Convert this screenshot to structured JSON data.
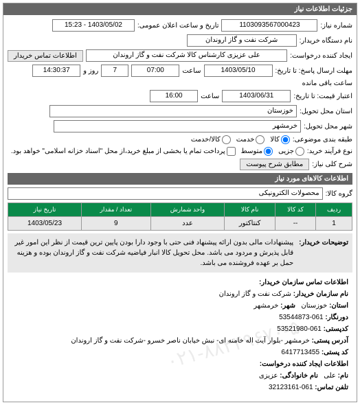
{
  "header": {
    "title": "جزئیات اطلاعات نیاز"
  },
  "form": {
    "request_number_label": "شماره نیاز:",
    "request_number": "1103093567000423",
    "announce_date_label": "تاریخ و ساعت اعلان عمومی:",
    "announce_date": "1403/05/02 - 15:23",
    "device_name_label": "نام دستگاه خریدار:",
    "device_name": "شرکت نفت و گاز اروندان",
    "creator_label": "ایجاد کننده درخواست:",
    "creator": "علی عزیزی کارشناس کالا شرکت نفت و گاز اروندان",
    "buyer_contact_btn": "اطلاعات تماس خریدار",
    "deadline_label": "مهلت ارسال پاسخ: تا تاریخ:",
    "deadline_date": "1403/05/10",
    "deadline_hour_label": "ساعت",
    "deadline_hour": "07:00",
    "remain_days": "7",
    "remain_days_label": "روز و",
    "remain_time": "14:30:37",
    "remain_time_label": "ساعت باقی مانده",
    "validity_label": "اعتبار قیمت: تا تاریخ:",
    "validity_date": "1403/06/31",
    "validity_hour_label": "ساعت",
    "validity_hour": "16:00",
    "province_label": "استان محل تحویل:",
    "province": "خوزستان",
    "city_label": "شهر محل تحویل:",
    "city": "خرمشهر",
    "class_label": "طبقه بندی موضوعی:",
    "class_goods": "کالا",
    "class_service": "خدمت",
    "class_both": "کالا/خدمت",
    "type_label": "نوع فرآیند خرید:",
    "type_small": "جزیی",
    "type_medium": "متوسط",
    "type_note": "پرداخت تمام یا بخشی از مبلغ خرید،از محل \"اسناد خزانه اسلامی\" خواهد بود.",
    "desc_label": "شرح کلی نیاز:",
    "desc_btn": "مطابق شرح پیوست",
    "items_title": "اطلاعات کالاهای مورد نیاز",
    "group_label": "گروه کالا:",
    "group": "محصولات الکترونیکی"
  },
  "table": {
    "cols": [
      "ردیف",
      "کد کالا",
      "نام کالا",
      "واحد شمارش",
      "تعداد / مقدار",
      "تاریخ نیاز"
    ],
    "rows": [
      [
        "1",
        "--",
        "کنتاکتور",
        "عدد",
        "9",
        "1403/05/23"
      ]
    ]
  },
  "notes": {
    "label": "توضیحات خریدار:",
    "text": "پیشنهادات مالی بدون ارائه پیشنهاد فنی حتی با وجود دارا بودن پایین ترین قیمت از نظر این امور غیر قابل پذیرش و مردود می باشد. محل تحویل کالا انبار فیاضیه شرکت نفت و گاز اروندان بوده و هزینه حمل بر عهده فروشنده می باشد."
  },
  "contact": {
    "section_title": "اطلاعات تماس سازمان خریدار:",
    "org_label": "نام سازمان خریدار:",
    "org": "شرکت نفت و گاز اروندان",
    "province_label": "استان:",
    "province": "خوزستان",
    "city_label": "شهر:",
    "city": "خرمشهر",
    "fax_label": "دورنگار:",
    "fax": "061-53544873",
    "postal_label": "کدپستی:",
    "postal": "061-53521980",
    "address_label": "آدرس پستی:",
    "address": "خرمشهر -بلوار آیت اله خامنه ای- نبش خیابان ناصر خسرو -شرکت نفت و گاز اروندان",
    "zip_label": "کد پستی:",
    "zip": "6417713455",
    "creator_section": "اطلاعات ایجاد کننده درخواست:",
    "name_label": "نام:",
    "name": "علی",
    "family_label": "نام خانوادگی:",
    "family": "عزیزی",
    "phone_label": "تلفن تماس:",
    "phone": "061-32123161"
  },
  "watermark": "۰۲۱-۸۸۳۴۹۶۷۰-۵",
  "colors": {
    "header_bg": "#666666",
    "th_bg": "#0a8a4a",
    "row_bg": "#e8e8e8"
  }
}
